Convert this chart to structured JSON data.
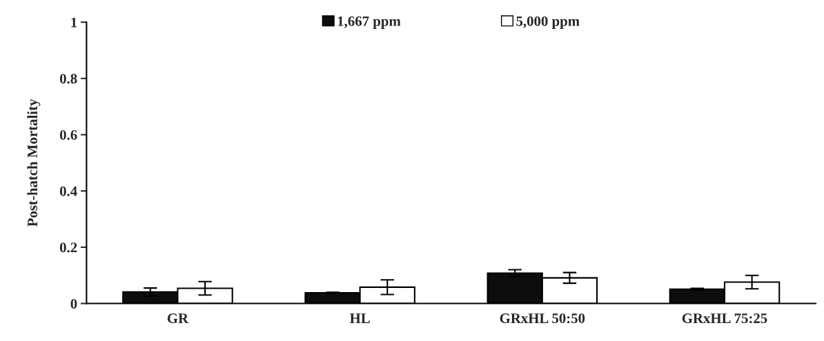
{
  "chart_data": {
    "type": "bar",
    "ylabel": "Post-hatch Mortality",
    "categories": [
      "GR",
      "HL",
      "GRxHL 50:50",
      "GRxHL 75:25"
    ],
    "series": [
      {
        "name": "1,667 ppm",
        "color": "#0d0d0d",
        "values": [
          0.041,
          0.038,
          0.108,
          0.051
        ],
        "errors": [
          0.014,
          0.002,
          0.012,
          0.003
        ]
      },
      {
        "name": "5,000 ppm",
        "color": "#ffffff",
        "values": [
          0.054,
          0.058,
          0.091,
          0.076
        ],
        "errors": [
          0.024,
          0.026,
          0.019,
          0.024
        ]
      }
    ],
    "ylim": [
      0,
      1
    ],
    "yticks": [
      0,
      0.2,
      0.4,
      0.6,
      0.8,
      1
    ],
    "grid": false,
    "legend": "top"
  }
}
